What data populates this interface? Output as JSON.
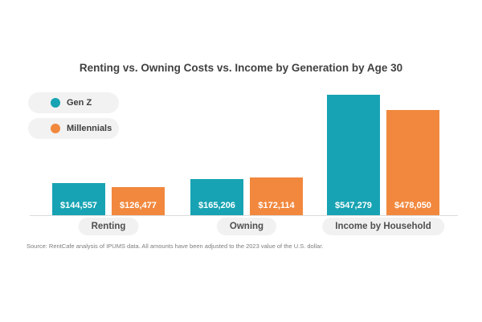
{
  "title": "Renting vs. Owning Costs vs. Income by Generation by Age 30",
  "source": "Source: RentCafe analysis of IPUMS data. All amounts have been adjusted to the 2023 value of the U.S. dollar.",
  "colors": {
    "gen_z": "#17a3b3",
    "millennials": "#f1883d",
    "pill_background": "#f1f1f1",
    "baseline": "#dcdcdc",
    "title_text": "#414141",
    "value_text": "#ffffff"
  },
  "chart_data": {
    "type": "bar",
    "title": "Renting vs. Owning Costs vs. Income by Generation by Age 30",
    "categories": [
      "Renting",
      "Owning",
      "Income by Household"
    ],
    "series": [
      {
        "name": "Gen Z",
        "color": "#17a3b3",
        "values": [
          144557,
          165206,
          547279
        ],
        "labels": [
          "$144,557",
          "$165,206",
          "$547,279"
        ]
      },
      {
        "name": "Millennials",
        "color": "#f1883d",
        "values": [
          126477,
          172114,
          478050
        ],
        "labels": [
          "$126,477",
          "$172,114",
          "$478,050"
        ]
      }
    ],
    "xlabel": "",
    "ylabel": "",
    "ylim": [
      0,
      547279
    ],
    "grid": false,
    "legend_position": "top-left",
    "value_labels_position": "inside-bottom"
  }
}
